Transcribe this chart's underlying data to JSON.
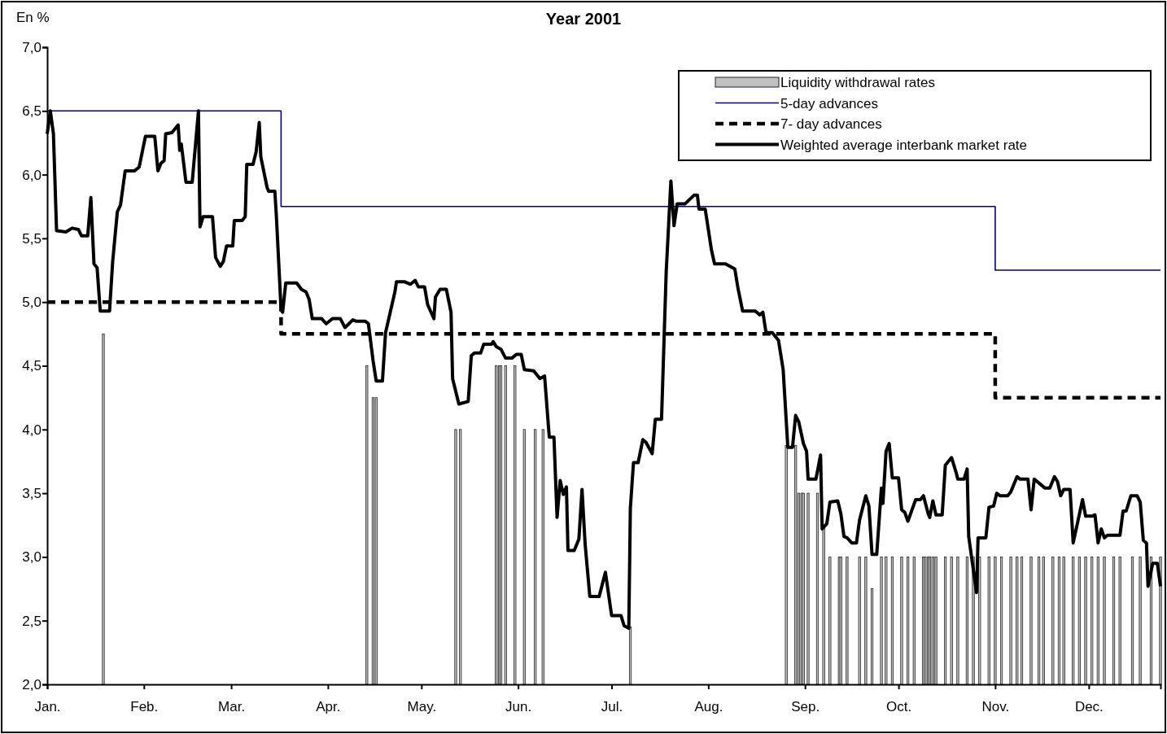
{
  "chart_data": {
    "type": "line",
    "title": "Year 2001",
    "ylabel": "En %",
    "xlim": [
      "2001-01-01",
      "2001-12-24"
    ],
    "xticks": [
      {
        "value": "2001-01-01",
        "label": "Jan."
      },
      {
        "value": "2001-02-01",
        "label": "Feb."
      },
      {
        "value": "2001-03-01",
        "label": "Mar."
      },
      {
        "value": "2001-04-01",
        "label": "Apr."
      },
      {
        "value": "2001-05-01",
        "label": "May."
      },
      {
        "value": "2001-06-01",
        "label": "Jun."
      },
      {
        "value": "2001-07-01",
        "label": "Jul."
      },
      {
        "value": "2001-08-01",
        "label": "Aug."
      },
      {
        "value": "2001-09-01",
        "label": "Sep."
      },
      {
        "value": "2001-10-01",
        "label": "Oct."
      },
      {
        "value": "2001-11-01",
        "label": "Nov."
      },
      {
        "value": "2001-12-01",
        "label": "Dec."
      }
    ],
    "ylim": [
      2,
      7
    ],
    "yticks": [
      {
        "value": 2,
        "label": "2,0"
      },
      {
        "value": 2.5,
        "label": "2,5"
      },
      {
        "value": 3,
        "label": "3,0"
      },
      {
        "value": 3.5,
        "label": "3,5"
      },
      {
        "value": 4,
        "label": "4,0"
      },
      {
        "value": 4.5,
        "label": "4,5"
      },
      {
        "value": 5,
        "label": "5,0"
      },
      {
        "value": 5.5,
        "label": "5,5"
      },
      {
        "value": 6,
        "label": "6,0"
      },
      {
        "value": 6.5,
        "label": "6,5"
      },
      {
        "value": 7,
        "label": "7,0"
      }
    ],
    "legend": "top right",
    "series": [
      {
        "type": "bar",
        "name": "Liquidity withdrawal rates",
        "color": "#c0c0c0",
        "x": [
          "2001-01-19",
          "2001-04-13T12:00",
          "2001-04-15T12:00",
          "2001-04-16T12:00",
          "2001-05-12",
          "2001-05-13T12:00",
          "2001-05-25",
          "2001-05-26",
          "2001-05-26T12:00",
          "2001-05-28",
          "2001-05-31",
          "2001-06-03",
          "2001-06-06T12:00",
          "2001-06-09",
          "2001-07-07",
          "2001-08-26",
          "2001-08-29",
          "2001-08-30",
          "2001-08-31",
          "2001-08-31T12:00",
          "2001-09-02",
          "2001-09-05",
          "2001-09-07",
          "2001-09-09",
          "2001-09-12",
          "2001-09-12T12:00",
          "2001-09-14T12:00",
          "2001-09-18T12:00",
          "2001-09-20T12:00",
          "2001-09-22T12:00",
          "2001-09-25T12:00",
          "2001-09-27",
          "2001-09-29",
          "2001-10-02",
          "2001-10-04",
          "2001-10-06",
          "2001-10-09",
          "2001-10-09T12:00",
          "2001-10-10T12:00",
          "2001-10-11",
          "2001-10-12",
          "2001-10-13",
          "2001-10-16",
          "2001-10-18",
          "2001-10-20",
          "2001-10-23",
          "2001-10-25",
          "2001-10-27",
          "2001-10-30",
          "2001-11-01",
          "2001-11-03",
          "2001-11-06",
          "2001-11-08",
          "2001-11-09T12:00",
          "2001-11-12T12:00",
          "2001-11-15",
          "2001-11-16T12:00",
          "2001-11-19T12:00",
          "2001-11-21T12:00",
          "2001-11-23",
          "2001-11-26",
          "2001-11-28",
          "2001-11-30",
          "2001-12-02",
          "2001-12-04",
          "2001-12-06",
          "2001-12-09",
          "2001-12-11",
          "2001-12-15",
          "2001-12-17T12:00",
          "2001-12-21",
          "2001-12-24"
        ],
        "values": [
          4.75,
          4.5,
          4.25,
          4.25,
          4.0,
          4.0,
          4.5,
          4.5,
          4.5,
          4.5,
          4.5,
          4.0,
          4.0,
          4.0,
          2.45,
          3.875,
          3.875,
          3.5,
          3.5,
          3.5,
          3.5,
          3.5,
          3.25,
          3.0,
          3.0,
          3.0,
          3.0,
          3.0,
          3.0,
          2.75,
          3.0,
          3.0,
          3.0,
          3.0,
          3.0,
          3.0,
          3.0,
          3.0,
          3.0,
          3.0,
          3.0,
          3.0,
          3.0,
          3.0,
          3.0,
          3.0,
          3.0,
          3.0,
          3.0,
          3.0,
          3.0,
          3.0,
          3.0,
          3.0,
          3.0,
          3.0,
          3.0,
          3.0,
          3.0,
          3.0,
          3.0,
          3.0,
          3.0,
          3.0,
          3.0,
          3.0,
          3.0,
          3.0,
          3.0,
          3.0,
          3.0,
          3.0
        ]
      },
      {
        "type": "step",
        "name": "5-day advances",
        "color": "#000080",
        "line_style": "solid",
        "x": [
          "2001-01-01",
          "2001-03-17",
          "2001-11-01",
          "2001-12-24"
        ],
        "values": [
          6.5,
          5.75,
          5.25,
          5.25
        ]
      },
      {
        "type": "step",
        "name": "7- day advances",
        "color": "#000000",
        "line_style": "dashed",
        "x": [
          "2001-01-01",
          "2001-03-17",
          "2001-11-01",
          "2001-12-24"
        ],
        "values": [
          5.0,
          4.75,
          4.25,
          4.25
        ]
      },
      {
        "name": "Weighted average interbank market rate",
        "color": "#000000",
        "line_style": "solid",
        "x": [
          "2001-01-01",
          "2001-01-02",
          "2001-01-03",
          "2001-01-04",
          "2001-01-07",
          "2001-01-09",
          "2001-01-11",
          "2001-01-12",
          "2001-01-14",
          "2001-01-15",
          "2001-01-16",
          "2001-01-17",
          "2001-01-18",
          "2001-01-21",
          "2001-01-22",
          "2001-01-23T12:00",
          "2001-01-24T12:00",
          "2001-01-26",
          "2001-01-29",
          "2001-01-30T12:00",
          "2001-02-01T12:00",
          "2001-02-04T12:00",
          "2001-02-05T12:00",
          "2001-02-06T12:00",
          "2001-02-07T12:00",
          "2001-02-08",
          "2001-02-10",
          "2001-02-12",
          "2001-02-12T12:00",
          "2001-02-13",
          "2001-02-14T12:00",
          "2001-02-16T12:00",
          "2001-02-18T12:00",
          "2001-02-19",
          "2001-02-20",
          "2001-02-23",
          "2001-02-24",
          "2001-02-25T12:00",
          "2001-02-26T12:00",
          "2001-02-27T12:00",
          "2001-03-01T12:00",
          "2001-03-02",
          "2001-03-04T12:00",
          "2001-03-05T12:00",
          "2001-03-06",
          "2001-03-08",
          "2001-03-09",
          "2001-03-10",
          "2001-03-10T12:00",
          "2001-03-12T12:00",
          "2001-03-13",
          "2001-03-15",
          "2001-03-15T12:00",
          "2001-03-17",
          "2001-03-17T12:00",
          "2001-03-18T12:00",
          "2001-03-22",
          "2001-03-23T12:00",
          "2001-03-25",
          "2001-03-26",
          "2001-03-27",
          "2001-03-30",
          "2001-03-31T12:00",
          "2001-04-02T12:00",
          "2001-04-05",
          "2001-04-06T12:00",
          "2001-04-09",
          "2001-04-10",
          "2001-04-13",
          "2001-04-14",
          "2001-04-15T12:00",
          "2001-04-16T12:00",
          "2001-04-18T12:00",
          "2001-04-19T12:00",
          "2001-04-21",
          "2001-04-22T12:00",
          "2001-04-23",
          "2001-04-25T12:00",
          "2001-04-27T12:00",
          "2001-04-29",
          "2001-04-30",
          "2001-05-02",
          "2001-05-03",
          "2001-05-05",
          "2001-05-05T12:00",
          "2001-05-07",
          "2001-05-09",
          "2001-05-10T12:00",
          "2001-05-11",
          "2001-05-13",
          "2001-05-16",
          "2001-05-17",
          "2001-05-18",
          "2001-05-20",
          "2001-05-21",
          "2001-05-23T12:00",
          "2001-05-24",
          "2001-05-25",
          "2001-05-26T12:00",
          "2001-05-28",
          "2001-05-30",
          "2001-05-31T12:00",
          "2001-06-02",
          "2001-06-03",
          "2001-06-06",
          "2001-06-08",
          "2001-06-09T12:00",
          "2001-06-11",
          "2001-06-12T12:00",
          "2001-06-13T12:00",
          "2001-06-14T12:00",
          "2001-06-15T12:00",
          "2001-06-16T12:00",
          "2001-06-17",
          "2001-06-19",
          "2001-06-20T12:00",
          "2001-06-21T12:00",
          "2001-06-22T12:00",
          "2001-06-24",
          "2001-06-27",
          "2001-06-29",
          "2001-07-01",
          "2001-07-04",
          "2001-07-05",
          "2001-07-06T12:00",
          "2001-07-07",
          "2001-07-08",
          "2001-07-09T12:00",
          "2001-07-11",
          "2001-07-12",
          "2001-07-14",
          "2001-07-15",
          "2001-07-17",
          "2001-07-18T12:00",
          "2001-07-20",
          "2001-07-21",
          "2001-07-22",
          "2001-07-24T12:00",
          "2001-07-27T12:00",
          "2001-07-28T12:00",
          "2001-07-29",
          "2001-07-31",
          "2001-08-02",
          "2001-08-03",
          "2001-08-06T12:00",
          "2001-08-09T12:00",
          "2001-08-10T12:00",
          "2001-08-12",
          "2001-08-16",
          "2001-08-17T12:00",
          "2001-08-18T12:00",
          "2001-08-19T12:00",
          "2001-08-21T12:00",
          "2001-08-23T12:00",
          "2001-08-25",
          "2001-08-26T12:00",
          "2001-08-28",
          "2001-08-29",
          "2001-08-30",
          "2001-08-31T12:00",
          "2001-09-01T12:00",
          "2001-09-02",
          "2001-09-04T12:00",
          "2001-09-06",
          "2001-09-06T12:00",
          "2001-09-08",
          "2001-09-09",
          "2001-09-11T12:00",
          "2001-09-12T12:00",
          "2001-09-13T12:00",
          "2001-09-14T12:00",
          "2001-09-16",
          "2001-09-17T12:00",
          "2001-09-18T12:00",
          "2001-09-20T12:00",
          "2001-09-21T12:00",
          "2001-09-22T12:00",
          "2001-09-24",
          "2001-09-25T12:00",
          "2001-09-26",
          "2001-09-27",
          "2001-09-28",
          "2001-09-29",
          "2001-10-01",
          "2001-10-02",
          "2001-10-03",
          "2001-10-04",
          "2001-10-06T12:00",
          "2001-10-08",
          "2001-10-09",
          "2001-10-10T12:00",
          "2001-10-11",
          "2001-10-12",
          "2001-10-13",
          "2001-10-15",
          "2001-10-16",
          "2001-10-18",
          "2001-10-19T12:00",
          "2001-10-20",
          "2001-10-22",
          "2001-10-23",
          "2001-10-23T12:00",
          "2001-10-26",
          "2001-10-26T12:00",
          "2001-10-29",
          "2001-10-30",
          "2001-10-31T12:00",
          "2001-11-01T12:00",
          "2001-11-02T12:00",
          "2001-11-05",
          "2001-11-06",
          "2001-11-08",
          "2001-11-09",
          "2001-11-11T12:00",
          "2001-11-12T12:00",
          "2001-11-13T12:00",
          "2001-11-15T12:00",
          "2001-11-17",
          "2001-11-18T12:00",
          "2001-11-20",
          "2001-11-21",
          "2001-11-22",
          "2001-11-23",
          "2001-11-25",
          "2001-11-26",
          "2001-11-27T12:00",
          "2001-11-29",
          "2001-11-30",
          "2001-12-02",
          "2001-12-03",
          "2001-12-04",
          "2001-12-05",
          "2001-12-06",
          "2001-12-07",
          "2001-12-11",
          "2001-12-12",
          "2001-12-13",
          "2001-12-14T12:00",
          "2001-12-16T12:00",
          "2001-12-17T12:00",
          "2001-12-18T12:00",
          "2001-12-19T12:00",
          "2001-12-20",
          "2001-12-21T12:00",
          "2001-12-23",
          "2001-12-24"
        ],
        "values": [
          6.32,
          6.5,
          6.32,
          5.56,
          5.55,
          5.58,
          5.57,
          5.52,
          5.52,
          5.82,
          5.3,
          5.27,
          4.93,
          4.93,
          5.32,
          5.71,
          5.76,
          6.03,
          6.03,
          6.06,
          6.3,
          6.3,
          6.03,
          6.09,
          6.11,
          6.32,
          6.33,
          6.39,
          6.19,
          6.24,
          5.94,
          5.94,
          6.5,
          5.59,
          5.67,
          5.67,
          5.35,
          5.28,
          5.32,
          5.44,
          5.44,
          5.64,
          5.64,
          5.67,
          6.08,
          6.08,
          6.18,
          6.41,
          6.14,
          5.9,
          5.87,
          5.87,
          5.67,
          4.94,
          4.92,
          5.15,
          5.15,
          5.1,
          5.08,
          5.02,
          4.87,
          4.87,
          4.83,
          4.87,
          4.87,
          4.8,
          4.86,
          4.85,
          4.85,
          4.83,
          4.54,
          4.38,
          4.38,
          4.76,
          4.92,
          5.08,
          5.16,
          5.16,
          5.14,
          5.17,
          5.12,
          5.12,
          4.98,
          4.87,
          5.04,
          5.1,
          5.1,
          4.92,
          4.4,
          4.2,
          4.22,
          4.58,
          4.6,
          4.6,
          4.67,
          4.67,
          4.69,
          4.65,
          4.63,
          4.56,
          4.56,
          4.59,
          4.59,
          4.47,
          4.46,
          4.4,
          4.42,
          3.94,
          3.94,
          3.31,
          3.6,
          3.49,
          3.55,
          3.05,
          3.05,
          3.14,
          3.53,
          3.1,
          2.69,
          2.69,
          2.88,
          2.54,
          2.54,
          2.46,
          2.44,
          3.38,
          3.74,
          3.74,
          3.92,
          3.9,
          3.81,
          4.08,
          4.08,
          5.24,
          5.95,
          5.6,
          5.77,
          5.77,
          5.84,
          5.84,
          5.73,
          5.73,
          5.41,
          5.3,
          5.3,
          5.26,
          5.11,
          4.93,
          4.93,
          4.9,
          4.92,
          4.76,
          4.76,
          4.7,
          4.47,
          3.86,
          3.86,
          4.11,
          4.06,
          3.89,
          3.83,
          3.61,
          3.61,
          3.8,
          3.22,
          3.26,
          3.43,
          3.44,
          3.34,
          3.16,
          3.15,
          3.11,
          3.11,
          3.29,
          3.48,
          3.4,
          3.02,
          3.02,
          3.54,
          3.42,
          3.83,
          3.89,
          3.62,
          3.62,
          3.37,
          3.35,
          3.28,
          3.45,
          3.45,
          3.48,
          3.34,
          3.31,
          3.44,
          3.33,
          3.33,
          3.72,
          3.78,
          3.66,
          3.61,
          3.61,
          3.69,
          3.16,
          2.72,
          3.15,
          3.15,
          3.39,
          3.4,
          3.5,
          3.48,
          3.48,
          3.51,
          3.63,
          3.61,
          3.61,
          3.37,
          3.61,
          3.57,
          3.54,
          3.54,
          3.63,
          3.59,
          3.48,
          3.53,
          3.53,
          3.11,
          3.28,
          3.45,
          3.32,
          3.32,
          3.33,
          3.11,
          3.22,
          3.15,
          3.17,
          3.17,
          3.36,
          3.36,
          3.48,
          3.48,
          3.43,
          3.13,
          3.11,
          2.77,
          2.95,
          2.95,
          2.77
        ]
      }
    ]
  }
}
